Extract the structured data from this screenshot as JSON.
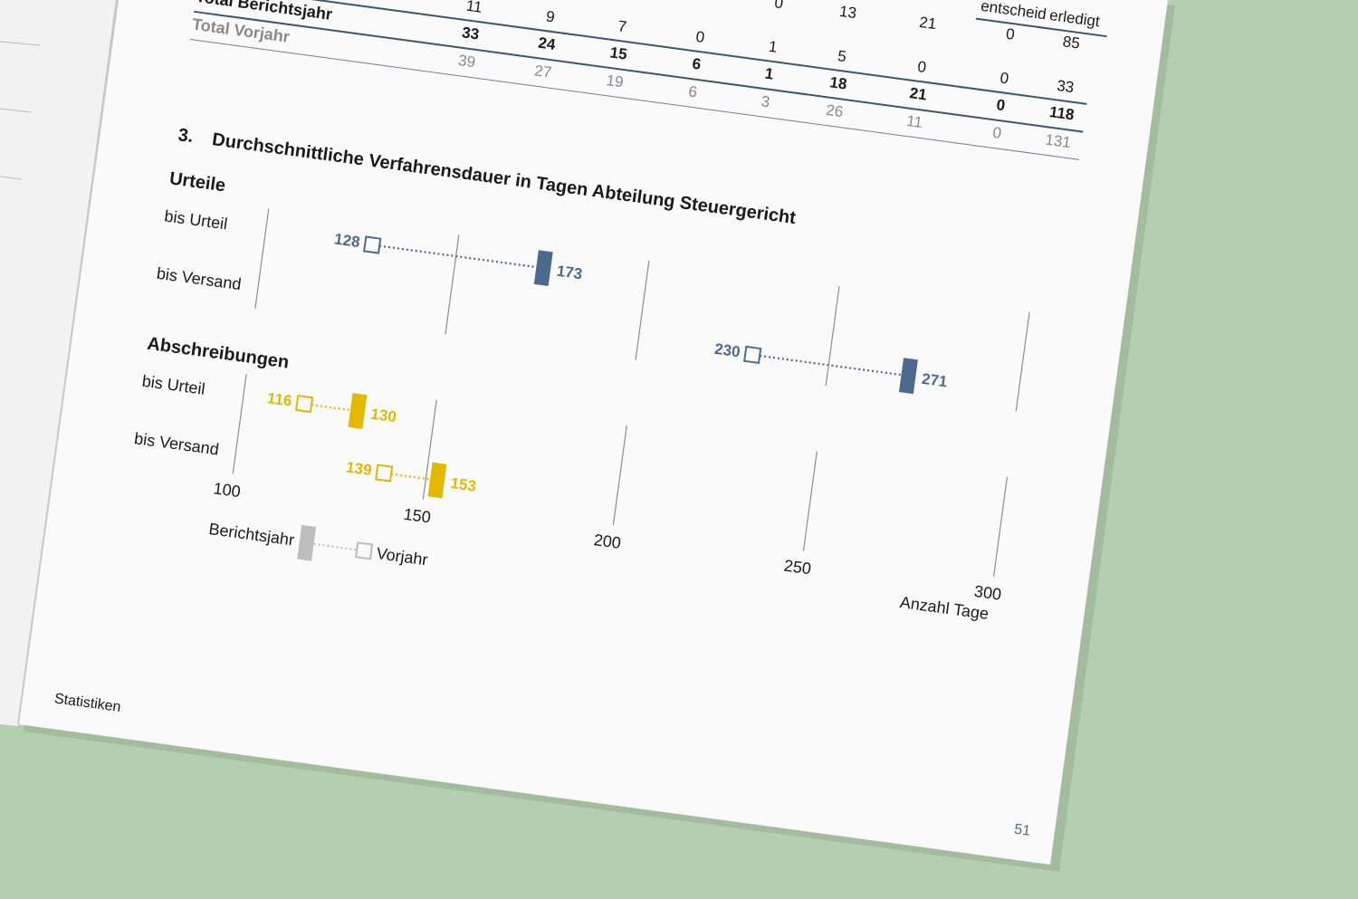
{
  "table": {
    "headers": [
      "entscheid",
      "erledigt"
    ],
    "rows": [
      {
        "values": [
          0,
          13,
          21,
          0,
          85
        ]
      },
      {
        "values": [
          11,
          9,
          7,
          0,
          1,
          5,
          0,
          0,
          33
        ]
      },
      {
        "label": "Total Berichtsjahr",
        "values": [
          33,
          24,
          15,
          6,
          1,
          18,
          21,
          0,
          118
        ]
      },
      {
        "label": "Total Vorjahr",
        "values": [
          39,
          27,
          19,
          6,
          3,
          26,
          11,
          0,
          131
        ]
      }
    ]
  },
  "chart_data": {
    "type": "dumbbell",
    "number": "3.",
    "title": "Durchschnittliche Verfahrensdauer in Tagen Abteilung Steuergericht",
    "x_label": "Anzahl Tage",
    "xlim": [
      100,
      300
    ],
    "xticks": [
      100,
      150,
      200,
      250,
      300
    ],
    "series": [
      {
        "name": "Berichtsjahr",
        "color": "#bdbdbd"
      },
      {
        "name": "Vorjahr",
        "color": "#bdbdbd"
      }
    ],
    "groups": [
      {
        "name": "Urteile",
        "color": "#4b6a8e",
        "categories": [
          "bis Urteil",
          "bis Versand"
        ],
        "values": [
          173,
          271
        ],
        "prior_values": [
          128,
          230
        ]
      },
      {
        "name": "Abschreibungen",
        "color": "#e2b800",
        "categories": [
          "bis Urteil",
          "bis Versand"
        ],
        "values": [
          130,
          153
        ],
        "prior_values": [
          116,
          139
        ]
      }
    ]
  },
  "footer": {
    "section": "Statistiken",
    "page": 51
  }
}
